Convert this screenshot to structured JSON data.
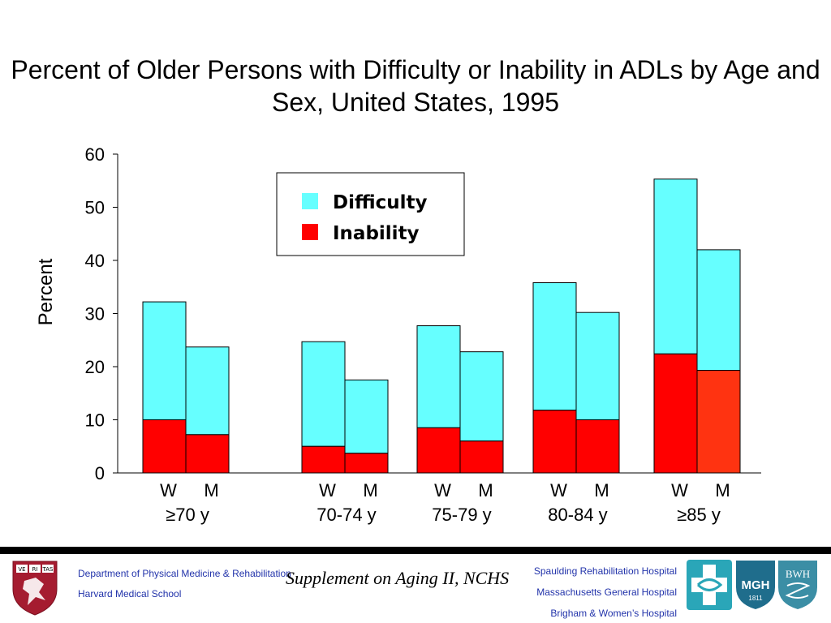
{
  "chart_data": {
    "type": "bar",
    "stacked": true,
    "title": "Percent of Older Persons with Difficulty or Inability in ADLs by Age and Sex, United States, 1995",
    "ylabel": "Percent",
    "ylim": [
      0,
      60
    ],
    "yticks": [
      0,
      10,
      20,
      30,
      40,
      50,
      60
    ],
    "groups": [
      "≥70 y",
      "70-74 y",
      "75-79 y",
      "80-84 y",
      "≥85 y"
    ],
    "sexes": [
      "W",
      "M"
    ],
    "categories": [
      "W ≥70 y",
      "M ≥70 y",
      "W 70-74 y",
      "M 70-74 y",
      "W 75-79 y",
      "M 75-79 y",
      "W 80-84 y",
      "M 80-84 y",
      "W ≥85 y",
      "M ≥85 y"
    ],
    "series": [
      {
        "name": "Inability",
        "color": "#ff0000",
        "values": [
          10,
          7.2,
          5,
          3.7,
          8.5,
          6,
          11.8,
          10,
          22.4,
          19.3
        ]
      },
      {
        "name": "Difficulty",
        "color": "#66ffff",
        "values": [
          22.2,
          16.5,
          19.7,
          13.8,
          19.2,
          16.8,
          24,
          20.2,
          32.9,
          22.7
        ]
      }
    ],
    "legend": {
      "position": "top-center",
      "items": [
        "Difficulty",
        "Inability"
      ]
    },
    "grid": false
  },
  "footer": {
    "dept_line1": "Department of Physical Medicine & Rehabilitation",
    "dept_line2": "Harvard Medical School",
    "source": "Supplement on Aging II, NCHS",
    "hospitals": [
      "Spaulding Rehabilitation Hospital",
      "Massachusetts General Hospital",
      "Brigham & Women’s Hospital"
    ],
    "harvard_shield_text": [
      "VE",
      "RI",
      "TAS"
    ],
    "mgh_logo_text": "MGH",
    "mgh_year": "1811",
    "bwh_logo_text": "BWH"
  },
  "colors": {
    "difficulty": "#66ffff",
    "inability": "#ff0000",
    "inability_alt": "#ff3311"
  },
  "icons": [
    "harvard-shield-icon",
    "spaulding-cross-icon",
    "mgh-shield-icon",
    "bwh-shield-icon"
  ]
}
